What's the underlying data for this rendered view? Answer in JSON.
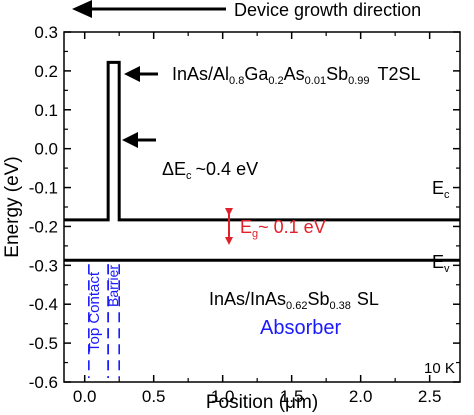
{
  "chart_data": {
    "type": "line",
    "title": "",
    "xlabel": "Position (μm)",
    "ylabel": "Energy (eV)",
    "xlim": [
      -0.15,
      2.72
    ],
    "ylim": [
      -0.6,
      0.3
    ],
    "xticks": [
      0.0,
      0.5,
      1.0,
      1.5,
      2.0,
      2.5
    ],
    "xtick_labels": [
      "0.0",
      "0.5",
      "1.0",
      "1.5",
      "2.0",
      "2.5"
    ],
    "yticks": [
      0.3,
      0.2,
      0.1,
      0.0,
      -0.1,
      -0.2,
      -0.3,
      -0.4,
      -0.5,
      -0.6
    ],
    "ytick_labels": [
      "0.3",
      "0.2",
      "0.1",
      "0.0",
      "-0.1",
      "-0.2",
      "-0.3",
      "-0.4",
      "-0.5",
      "-0.6"
    ],
    "grid": false,
    "series": [
      {
        "x": [
          -0.15,
          0.17,
          0.17,
          0.25,
          0.25,
          2.72
        ],
        "y": [
          -0.183,
          -0.183,
          0.222,
          0.222,
          -0.183,
          -0.183
        ],
        "color": "#000000"
      },
      {
        "x": [
          -0.15,
          2.72
        ],
        "y": [
          -0.287,
          -0.287
        ],
        "color": "#000000"
      }
    ],
    "regions": [
      {
        "x": [
          0.03,
          0.17
        ],
        "y": [
          -0.6,
          -0.287
        ],
        "color": "#1a1aff",
        "style": "dashed"
      },
      {
        "x": [
          0.17,
          0.25
        ],
        "y": [
          -0.6,
          -0.287
        ],
        "color": "#1a1aff",
        "style": "dashed"
      }
    ],
    "annotations": {
      "growth_direction": "Device growth direction",
      "t2sl": {
        "prefix": "InAs/Al",
        "s1": "0.8",
        "m1": "Ga",
        "s2": "0.2",
        "m2": "As",
        "s3": "0.01",
        "m3": "Sb",
        "s4": "0.99",
        "suffix": "T2SL"
      },
      "delta_ec": {
        "main": "ΔE",
        "sub": "c",
        "rest": "~0.4 eV"
      },
      "ec": {
        "main": "E",
        "sub": "c"
      },
      "ev": {
        "main": "E",
        "sub": "v"
      },
      "eg": {
        "main": "E",
        "sub": "g",
        "rest": "~ 0.1 eV"
      },
      "absorber_sl": {
        "prefix": "InAs/InAs",
        "s1": "0.62",
        "m1": "Sb",
        "s2": "0.38",
        "suffix": "SL"
      },
      "absorber": "Absorber",
      "top_contact": "Top Contact",
      "barrier": "Barrier",
      "temperature": "10 K"
    },
    "colors": {
      "lines": "#000000",
      "eg_arrow": "#e0202a",
      "labels_blue": "#1a1aff"
    }
  }
}
